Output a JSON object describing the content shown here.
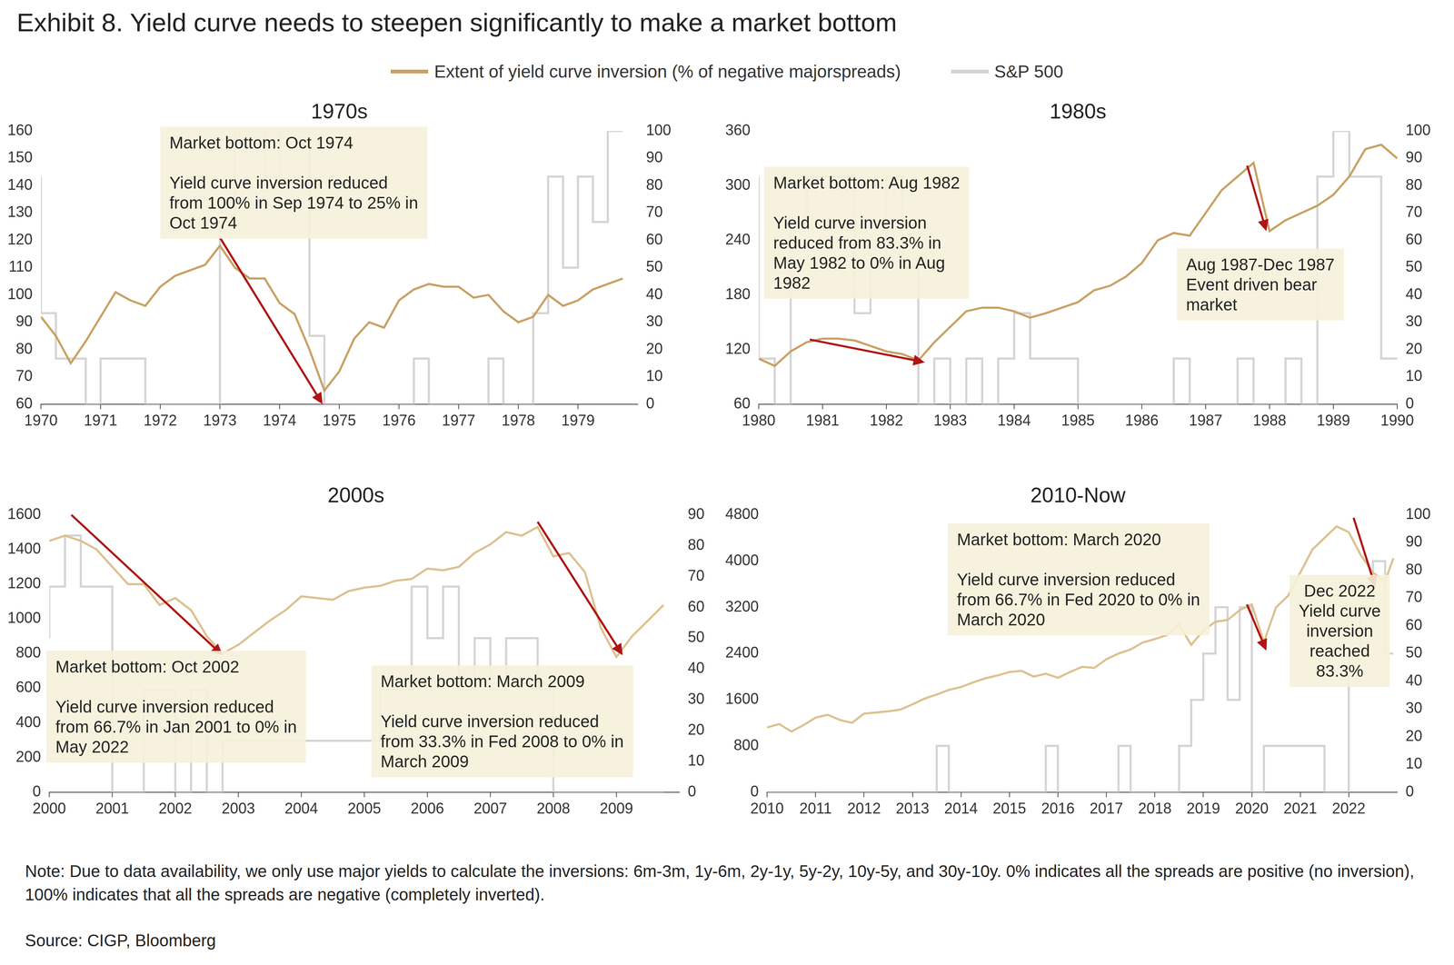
{
  "title": "Exhibit 8. Yield curve needs to steepen significantly to make a market bottom",
  "note": "Note: Due to data availability, we only use major yields to calculate the inversions: 6m-3m, 1y-6m, 2y-1y, 5y-2y, 10y-5y, and 30y-10y. 0% indicates all the spreads are positive (no inversion), 100% indicates that all the spreads are negative (completely inverted).",
  "source": "Source: CIGP, Bloomberg",
  "chart_data": [
    {
      "type": "line",
      "title": "1970s",
      "legend": "top",
      "grid": false,
      "x": [
        1970,
        1970.25,
        1970.5,
        1970.75,
        1971,
        1971.25,
        1971.5,
        1971.75,
        1972,
        1972.25,
        1972.5,
        1972.75,
        1973,
        1973.25,
        1973.5,
        1973.75,
        1974,
        1974.25,
        1974.5,
        1974.75,
        1975,
        1975.25,
        1975.5,
        1975.75,
        1976,
        1976.25,
        1976.5,
        1976.75,
        1977,
        1977.25,
        1977.5,
        1977.75,
        1978,
        1978.25,
        1978.5,
        1978.75,
        1979,
        1979.25,
        1979.5,
        1979.75
      ],
      "xlim": [
        1970,
        1980
      ],
      "xticks": [
        1970,
        1971,
        1972,
        1973,
        1974,
        1975,
        1976,
        1977,
        1978,
        1979
      ],
      "ylim": [
        60,
        160
      ],
      "yticks": [
        60,
        70,
        80,
        90,
        100,
        110,
        120,
        130,
        140,
        150,
        160
      ],
      "y2lim": [
        0,
        100
      ],
      "y2ticks": [
        0,
        10,
        20,
        30,
        40,
        50,
        60,
        70,
        80,
        90,
        100
      ],
      "series": [
        {
          "name": "Extent of yield curve inversion (% of negative majorspreads)",
          "color": "#c9a063",
          "line_style": "solid",
          "values": [
            92,
            85,
            75,
            83,
            92,
            101,
            98,
            96,
            103,
            107,
            109,
            111,
            118,
            110,
            106,
            106,
            97,
            93,
            80,
            65,
            72,
            84,
            90,
            88,
            98,
            102,
            104,
            103,
            103,
            99,
            100,
            94,
            90,
            92,
            100,
            96,
            98,
            102,
            104,
            106
          ]
        },
        {
          "name": "S&P 500",
          "color": "#d4d4d4",
          "axis": "y2",
          "line_style": "steps",
          "values": [
            83.3,
            33.3,
            16.7,
            16.7,
            0,
            16.7,
            16.7,
            16.7,
            0,
            0,
            0,
            0,
            0,
            66.7,
            100,
            100,
            83.3,
            100,
            100,
            25,
            0,
            0,
            0,
            0,
            0,
            0,
            16.7,
            0,
            0,
            0,
            0,
            16.7,
            0,
            0,
            33.3,
            83.3,
            50,
            83.3,
            66.7,
            100
          ]
        }
      ],
      "annotations": [
        {
          "text": [
            [
              "Market bottom: Oct 1974"
            ],
            [
              "Yield curve inversion reduced",
              "from 100% in Sep 1974 to 25% in",
              "Oct 1974"
            ]
          ],
          "arrow": {
            "x": [
              1973.0,
              1974.72
            ],
            "y": [
              121,
              60
            ]
          }
        }
      ]
    },
    {
      "type": "line",
      "title": "1980s",
      "grid": false,
      "x": [
        1980,
        1980.25,
        1980.5,
        1980.75,
        1981,
        1981.25,
        1981.5,
        1981.75,
        1982,
        1982.25,
        1982.5,
        1982.75,
        1983,
        1983.25,
        1983.5,
        1983.75,
        1984,
        1984.25,
        1984.5,
        1984.75,
        1985,
        1985.25,
        1985.5,
        1985.75,
        1986,
        1986.25,
        1986.5,
        1986.75,
        1987,
        1987.25,
        1987.5,
        1987.75,
        1988,
        1988.25,
        1988.5,
        1988.75,
        1989,
        1989.25,
        1989.5,
        1989.75,
        1990
      ],
      "xlim": [
        1980,
        1990
      ],
      "xticks": [
        1980,
        1981,
        1982,
        1983,
        1984,
        1985,
        1986,
        1987,
        1988,
        1989,
        1990
      ],
      "ylim": [
        60,
        360
      ],
      "yticks": [
        60,
        120,
        180,
        240,
        300,
        360
      ],
      "y2lim": [
        0,
        100
      ],
      "y2ticks": [
        0,
        10,
        20,
        30,
        40,
        50,
        60,
        70,
        80,
        90,
        100
      ],
      "series": [
        {
          "name": "Extent of yield curve inversion (% of negative majorspreads)",
          "color": "#c9a063",
          "line_style": "solid",
          "values": [
            110,
            102,
            118,
            128,
            132,
            132,
            130,
            124,
            118,
            115,
            108,
            128,
            145,
            162,
            166,
            166,
            162,
            155,
            160,
            166,
            172,
            185,
            190,
            200,
            215,
            240,
            248,
            245,
            270,
            295,
            310,
            325,
            250,
            262,
            270,
            278,
            290,
            310,
            340,
            345,
            330
          ]
        },
        {
          "name": "S&P 500",
          "color": "#d4d4d4",
          "axis": "y2",
          "line_style": "steps",
          "values": [
            83.3,
            16.7,
            0,
            66.7,
            83.3,
            83.3,
            83.3,
            33.3,
            50,
            83.3,
            50,
            0,
            16.7,
            0,
            16.7,
            0,
            16.7,
            33.3,
            16.7,
            16.7,
            16.7,
            0,
            0,
            0,
            0,
            0,
            0,
            16.7,
            0,
            0,
            0,
            16.7,
            0,
            0,
            16.7,
            0,
            83.3,
            100,
            83.3,
            83.3,
            16.7
          ]
        }
      ],
      "annotations": [
        {
          "text": [
            [
              "Market bottom: Aug 1982"
            ],
            [
              "Yield curve inversion",
              "reduced from 83.3% in",
              "May 1982 to 0% in Aug",
              "1982"
            ]
          ],
          "arrow": {
            "x": [
              1980.8,
              1982.6
            ],
            "y": [
              131,
              106
            ]
          }
        },
        {
          "text": [
            [
              "Aug 1987-Dec 1987",
              "Event driven bear",
              "market"
            ]
          ],
          "arrow": {
            "x": [
              1987.65,
              1987.95
            ],
            "y": [
              322,
              250
            ]
          }
        }
      ]
    },
    {
      "type": "line",
      "title": "2000s",
      "grid": false,
      "x": [
        2000,
        2000.25,
        2000.5,
        2000.75,
        2001,
        2001.25,
        2001.5,
        2001.75,
        2002,
        2002.25,
        2002.5,
        2002.75,
        2003,
        2003.25,
        2003.5,
        2003.75,
        2004,
        2004.25,
        2004.5,
        2004.75,
        2005,
        2005.25,
        2005.5,
        2005.75,
        2006,
        2006.25,
        2006.5,
        2006.75,
        2007,
        2007.25,
        2007.5,
        2007.75,
        2008,
        2008.25,
        2008.5,
        2008.75,
        2009,
        2009.25,
        2009.5,
        2009.75
      ],
      "xlim": [
        2000,
        2010
      ],
      "xticks": [
        2000,
        2001,
        2002,
        2003,
        2004,
        2005,
        2006,
        2007,
        2008,
        2009
      ],
      "ylim": [
        0,
        1600
      ],
      "yticks": [
        0,
        200,
        400,
        600,
        800,
        1000,
        1200,
        1400,
        1600
      ],
      "y2lim": [
        0,
        90
      ],
      "y2ticks": [
        0,
        10,
        20,
        30,
        40,
        50,
        60,
        70,
        80,
        90
      ],
      "series": [
        {
          "name": "Extent of yield curve inversion (% of negative majorspreads)",
          "color": "#dcc18f",
          "line_style": "solid",
          "values": [
            1450,
            1480,
            1450,
            1400,
            1300,
            1200,
            1200,
            1080,
            1120,
            1050,
            900,
            800,
            850,
            920,
            990,
            1050,
            1130,
            1120,
            1110,
            1160,
            1180,
            1190,
            1220,
            1230,
            1290,
            1280,
            1300,
            1380,
            1430,
            1500,
            1480,
            1530,
            1360,
            1380,
            1270,
            950,
            780,
            900,
            990,
            1080
          ]
        },
        {
          "name": "S&P 500",
          "color": "#d4d4d4",
          "axis": "y2",
          "line_style": "steps",
          "values": [
            50,
            66.7,
            83.3,
            66.7,
            66.7,
            0,
            0,
            33.3,
            33.3,
            0,
            33.3,
            0,
            16.7,
            16.7,
            16.7,
            16.7,
            16.7,
            16.7,
            16.7,
            16.7,
            16.7,
            16.7,
            33.3,
            33.3,
            66.7,
            50,
            66.7,
            33.3,
            50,
            33.3,
            50,
            50,
            33.3,
            0,
            0,
            0,
            0,
            0,
            0,
            0
          ]
        }
      ],
      "annotations": [
        {
          "text": [
            [
              "Market bottom: Oct 2002"
            ],
            [
              "Yield curve inversion reduced",
              "from 66.7% in Jan 2001 to 0% in",
              "May 2022"
            ]
          ],
          "arrow": {
            "x": [
              2000.35,
              2002.75
            ],
            "y": [
              1600,
              790
            ]
          }
        },
        {
          "text": [
            [
              "Market bottom: March 2009"
            ],
            [
              "Yield curve inversion reduced",
              "from 33.3% in Fed 2008 to 0% in",
              "March 2009"
            ]
          ],
          "arrow": {
            "x": [
              2007.75,
              2009.1
            ],
            "y": [
              1560,
              790
            ]
          }
        }
      ]
    },
    {
      "type": "line",
      "title": "2010-Now",
      "grid": false,
      "x": [
        2010,
        2010.25,
        2010.5,
        2010.75,
        2011,
        2011.25,
        2011.5,
        2011.75,
        2012,
        2012.25,
        2012.5,
        2012.75,
        2013,
        2013.25,
        2013.5,
        2013.75,
        2014,
        2014.25,
        2014.5,
        2014.75,
        2015,
        2015.25,
        2015.5,
        2015.75,
        2016,
        2016.25,
        2016.5,
        2016.75,
        2017,
        2017.25,
        2017.5,
        2017.75,
        2018,
        2018.25,
        2018.5,
        2018.75,
        2019,
        2019.25,
        2019.5,
        2019.75,
        2020,
        2020.25,
        2020.5,
        2020.75,
        2021,
        2021.25,
        2021.5,
        2021.75,
        2022,
        2022.25,
        2022.5,
        2022.75,
        2022.92
      ],
      "xlim": [
        2010,
        2023
      ],
      "xticks": [
        2010,
        2011,
        2012,
        2013,
        2014,
        2015,
        2016,
        2017,
        2018,
        2019,
        2020,
        2021,
        2022
      ],
      "ylim": [
        0,
        4800
      ],
      "yticks": [
        0,
        800,
        1600,
        2400,
        3200,
        4000,
        4800
      ],
      "y2lim": [
        0,
        100
      ],
      "y2ticks": [
        0,
        10,
        20,
        30,
        40,
        50,
        60,
        70,
        80,
        90,
        100
      ],
      "series": [
        {
          "name": "Extent of yield curve inversion (% of negative majorspreads)",
          "color": "#dcc18f",
          "line_style": "solid",
          "values": [
            1120,
            1180,
            1050,
            1160,
            1290,
            1340,
            1250,
            1200,
            1360,
            1380,
            1400,
            1430,
            1520,
            1620,
            1690,
            1770,
            1820,
            1900,
            1970,
            2020,
            2080,
            2100,
            2000,
            2050,
            1980,
            2080,
            2170,
            2150,
            2300,
            2400,
            2470,
            2590,
            2650,
            2720,
            2900,
            2550,
            2800,
            2950,
            2980,
            3150,
            3250,
            2600,
            3200,
            3400,
            3800,
            4200,
            4400,
            4600,
            4500,
            4100,
            3800,
            3650,
            4050
          ]
        },
        {
          "name": "S&P 500",
          "color": "#d4d4d4",
          "axis": "y2",
          "line_style": "steps",
          "values": [
            0,
            0,
            0,
            0,
            0,
            0,
            0,
            0,
            0,
            0,
            0,
            0,
            0,
            0,
            0,
            16.7,
            0,
            0,
            0,
            0,
            0,
            0,
            0,
            0,
            16.7,
            0,
            0,
            0,
            0,
            0,
            16.7,
            0,
            0,
            0,
            0,
            16.7,
            33.3,
            50,
            66.7,
            33.3,
            66.7,
            0,
            16.7,
            16.7,
            16.7,
            16.7,
            16.7,
            0,
            0,
            50,
            66.7,
            83.3,
            50
          ]
        }
      ],
      "annotations": [
        {
          "text": [
            [
              "Market bottom: March 2020"
            ],
            [
              "Yield curve inversion reduced",
              "from 66.7% in Fed 2020 to 0% in",
              "March 2020"
            ]
          ],
          "arrow": {
            "x": [
              2019.9,
              2020.3
            ],
            "y": [
              3250,
              2450
            ]
          }
        },
        {
          "text": [
            [
              "Dec 2022",
              "Yield curve",
              "inversion",
              "reached",
              "83.3%"
            ]
          ],
          "arrow": {
            "x": [
              2022.1,
              2022.55
            ],
            "y": [
              4750,
              3550
            ]
          }
        }
      ]
    }
  ]
}
